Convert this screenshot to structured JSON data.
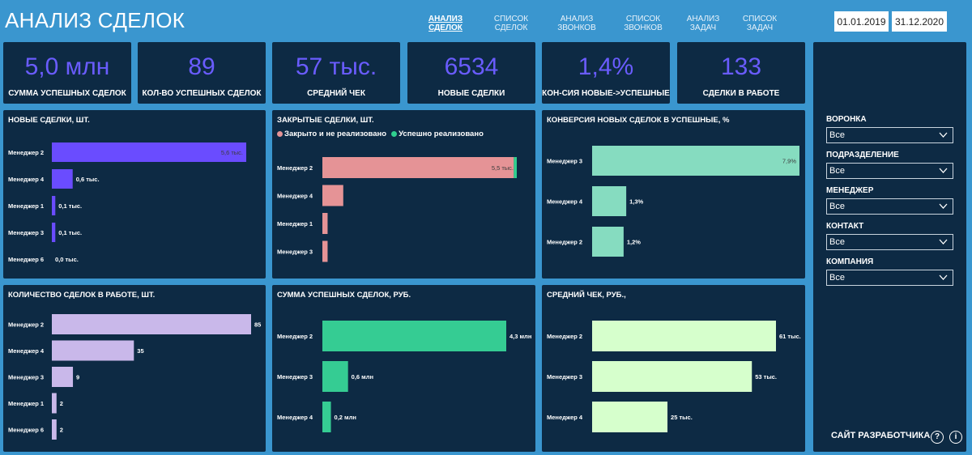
{
  "header": {
    "title": "АНАЛИЗ СДЕЛОК",
    "nav": [
      {
        "label": "АНАЛИЗ\nСДЕЛОК",
        "active": true
      },
      {
        "label": "СПИСОК\nСДЕЛОК",
        "active": false
      },
      {
        "label": "АНАЛИЗ\nЗВОНКОВ",
        "active": false
      },
      {
        "label": "СПИСОК\nЗВОНКОВ",
        "active": false
      },
      {
        "label": "АНАЛИЗ\nЗАДАЧ",
        "active": false
      },
      {
        "label": "СПИСОК\nЗАДАЧ",
        "active": false
      }
    ],
    "date_from": "01.01.2019",
    "date_to": "31.12.2020"
  },
  "kpis": [
    {
      "value": "5,0 млн",
      "label": "СУММА УСПЕШНЫХ СДЕЛОК"
    },
    {
      "value": "89",
      "label": "КОЛ-ВО УСПЕШНЫХ СДЕЛОК"
    },
    {
      "value": "57 тыс.",
      "label": "СРЕДНИЙ ЧЕК"
    },
    {
      "value": "6534",
      "label": "НОВЫЕ СДЕЛКИ"
    },
    {
      "value": "1,4%",
      "label": "КОН-СИЯ НОВЫЕ->УСПЕШНЫЕ"
    },
    {
      "value": "133",
      "label": "СДЕЛКИ В РАБОТЕ"
    }
  ],
  "filters": {
    "items": [
      {
        "label": "ВОРОНКА",
        "value": "Все"
      },
      {
        "label": "ПОДРАЗДЕЛЕНИЕ",
        "value": "Все"
      },
      {
        "label": "МЕНЕДЖЕР",
        "value": "Все"
      },
      {
        "label": "КОНТАКТ",
        "value": "Все"
      },
      {
        "label": "КОМПАНИЯ",
        "value": "Все"
      }
    ],
    "developer_link": "САЙТ РАЗРАБОТЧИКА",
    "help_icon": "question-circle-icon",
    "info_icon": "info-circle-icon",
    "chevron_icon": "chevron-down-icon"
  },
  "colors": {
    "background": "#3a96cf",
    "card": "#0d2a44",
    "kpi_value": "#6a5cff"
  },
  "chart_data": [
    {
      "type": "bar",
      "title": "НОВЫЕ СДЕЛКИ, ШТ.",
      "color": "#6a4cff",
      "categories": [
        "Менеджер 2",
        "Менеджер 4",
        "Менеджер 1",
        "Менеджер 3",
        "Менеджер 6"
      ],
      "values": [
        5600,
        600,
        100,
        100,
        0
      ],
      "labels": [
        "5,6 тыс.",
        "0,6 тыс.",
        "0,1 тыс.",
        "0,1 тыс.",
        "0,0 тыс."
      ],
      "max": 5600
    },
    {
      "type": "bar",
      "title": "ЗАКРЫТЫЕ СДЕЛКИ, ШТ.",
      "stacked": true,
      "legend": [
        {
          "name": "Закрыто и не реализовано",
          "color": "#e59396"
        },
        {
          "name": "Успешно реализовано",
          "color": "#2fcf8f"
        }
      ],
      "categories": [
        "Менеджер 2",
        "Менеджер 4",
        "Менеджер 1",
        "Менеджер 3"
      ],
      "series": [
        {
          "name": "Закрыто и не реализовано",
          "values": [
            5500,
            600,
            150,
            150
          ]
        },
        {
          "name": "Успешно реализовано",
          "values": [
            85,
            0,
            0,
            0
          ]
        }
      ],
      "labels": [
        "5,5 тыс.",
        "",
        "",
        ""
      ],
      "max": 5585
    },
    {
      "type": "bar",
      "title": "КОНВЕРСИЯ НОВЫХ СДЕЛОК В УСПЕШНЫЕ, %",
      "color": "#86dcc0",
      "categories": [
        "Менеджер 3",
        "Менеджер 4",
        "Менеджер 2"
      ],
      "values": [
        7.9,
        1.3,
        1.2
      ],
      "labels": [
        "7,9%",
        "1,3%",
        "1,2%"
      ],
      "max": 7.9
    },
    {
      "type": "bar",
      "title": "КОЛИЧЕСТВО СДЕЛОК В РАБОТЕ, ШТ.",
      "color": "#c9b8ea",
      "categories": [
        "Менеджер 2",
        "Менеджер 4",
        "Менеджер 3",
        "Менеджер 1",
        "Менеджер 6"
      ],
      "values": [
        85,
        35,
        9,
        2,
        2
      ],
      "labels": [
        "85",
        "35",
        "9",
        "2",
        "2"
      ],
      "max": 85
    },
    {
      "type": "bar",
      "title": "СУММА УСПЕШНЫХ СДЕЛОК, РУБ.",
      "color": "#35cc93",
      "categories": [
        "Менеджер 2",
        "Менеджер 3",
        "Менеджер 4"
      ],
      "values": [
        4.3,
        0.6,
        0.2
      ],
      "labels": [
        "4,3 млн",
        "0,6 млн",
        "0,2 млн"
      ],
      "max": 4.3
    },
    {
      "type": "bar",
      "title": "СРЕДНИЙ ЧЕК, РУБ.,",
      "color": "#d6ffcc",
      "categories": [
        "Менеджер 2",
        "Менеджер 3",
        "Менеджер 4"
      ],
      "values": [
        61,
        53,
        25
      ],
      "labels": [
        "61 тыс.",
        "53 тыс.",
        "25 тыс."
      ],
      "max": 61
    }
  ]
}
